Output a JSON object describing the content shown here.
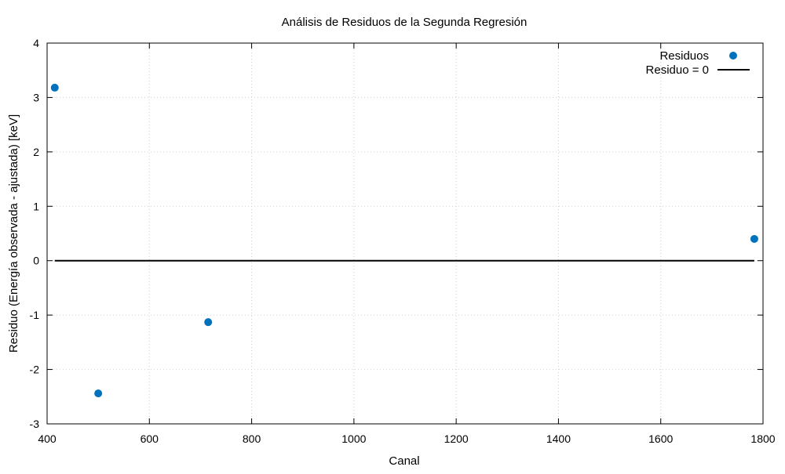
{
  "chart_data": {
    "type": "scatter",
    "title": "Análisis de Residuos de la Segunda Regresión",
    "xlabel": "Canal",
    "ylabel": "Residuo (Energía observada - ajustada) [keV]",
    "xlim": [
      400,
      1800
    ],
    "ylim": [
      -3,
      4
    ],
    "xticks": [
      400,
      600,
      800,
      1000,
      1200,
      1400,
      1600,
      1800
    ],
    "yticks": [
      -3,
      -2,
      -1,
      0,
      1,
      2,
      3,
      4
    ],
    "grid": true,
    "legend_position": "top-right",
    "series": [
      {
        "name": "Residuos",
        "kind": "points",
        "color": "#0072bd",
        "x": [
          415,
          500,
          715,
          1783
        ],
        "y": [
          3.18,
          -2.44,
          -1.13,
          0.4
        ]
      },
      {
        "name": "Residuo = 0",
        "kind": "line",
        "color": "#000000",
        "x": [
          415,
          1783
        ],
        "y": [
          0,
          0
        ]
      }
    ]
  }
}
